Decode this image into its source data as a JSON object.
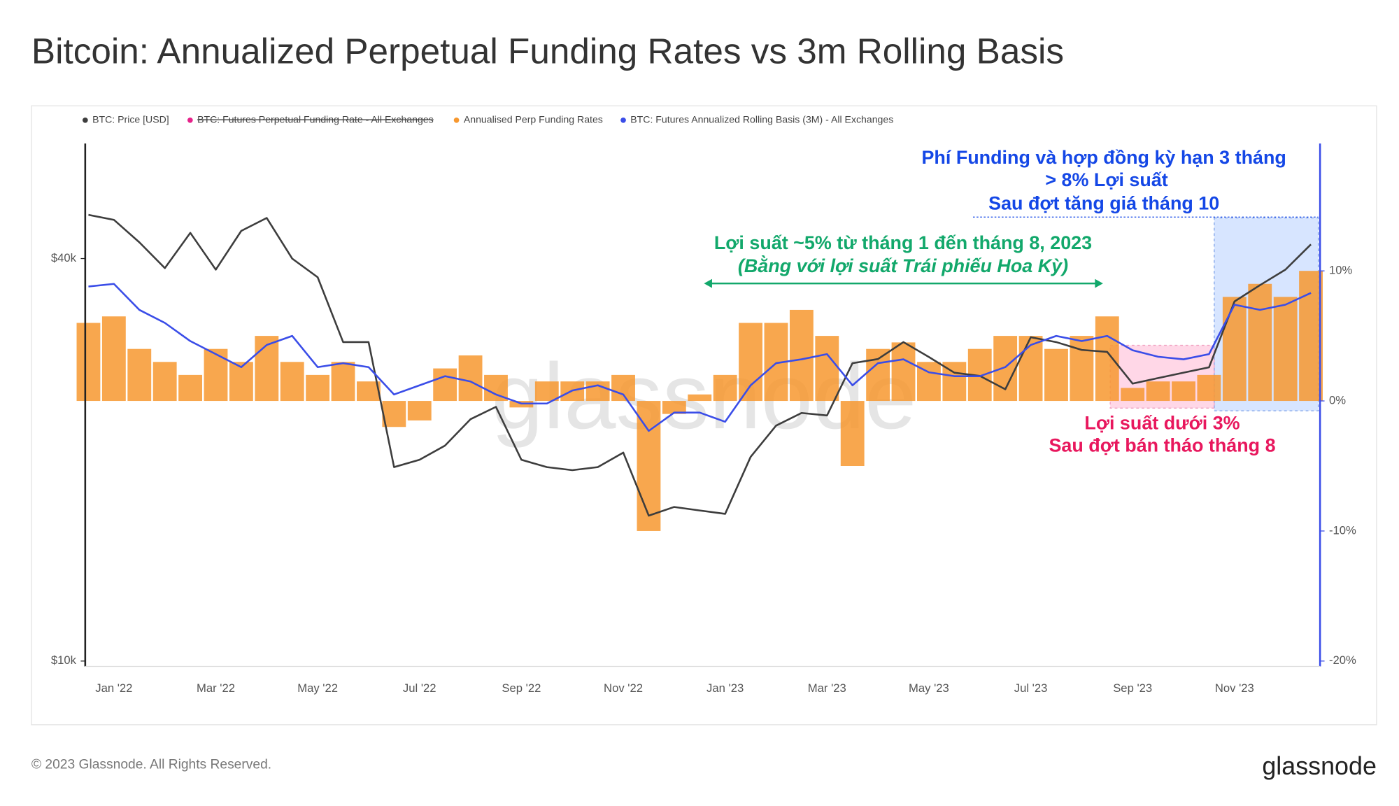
{
  "chart_data": {
    "type": "combo",
    "title": "Bitcoin: Annualized Perpetual Funding Rates vs 3m Rolling Basis",
    "categories": [
      null,
      "Jan '22",
      null,
      null,
      null,
      "Mar '22",
      null,
      null,
      null,
      "May '22",
      null,
      null,
      null,
      "Jul '22",
      null,
      null,
      null,
      "Sep '22",
      null,
      null,
      null,
      "Nov '22",
      null,
      null,
      null,
      "Jan '23",
      null,
      null,
      null,
      "Mar '23",
      null,
      null,
      null,
      "May '23",
      null,
      null,
      null,
      "Jul '23",
      null,
      null,
      null,
      "Sep '23",
      null,
      null,
      null,
      "Nov '23",
      null,
      null,
      null
    ],
    "series": [
      {
        "name": "BTC: Price [USD]",
        "type": "line",
        "axis": "y",
        "color": "#3d3d3d",
        "values": [
          46500,
          45700,
          42300,
          38700,
          43700,
          38500,
          44000,
          46000,
          40000,
          37500,
          30000,
          30000,
          19500,
          20000,
          21000,
          23000,
          24000,
          20000,
          19500,
          19300,
          19500,
          20500,
          16500,
          17000,
          16800,
          16600,
          20200,
          22500,
          23500,
          23300,
          27900,
          28300,
          30000,
          28500,
          27000,
          26700,
          25500,
          30500,
          30000,
          29200,
          29000,
          26000,
          26500,
          27000,
          27500,
          34500,
          36500,
          38500,
          42000
        ]
      },
      {
        "name": "Annualised Perp Funding Rates",
        "type": "bar",
        "axis": "y2",
        "color": "#f7982f",
        "values": [
          6,
          6.5,
          4,
          3,
          2,
          4,
          3,
          5,
          3,
          2,
          3,
          1.5,
          -2,
          -1.5,
          2.5,
          3.5,
          2,
          -0.5,
          1.5,
          1.5,
          1.5,
          2,
          -10,
          -1,
          0.5,
          2,
          6,
          6,
          7,
          5,
          -5,
          4,
          4.5,
          3,
          3,
          4,
          5,
          5,
          4,
          5,
          6.5,
          1,
          1.5,
          1.5,
          2,
          8,
          9,
          8,
          10
        ]
      },
      {
        "name": "BTC: Futures Annualized Rolling Basis (3M) - All Exchanges",
        "type": "line",
        "axis": "y2",
        "color": "#3a4de8",
        "values": [
          8.8,
          9,
          7,
          6,
          4.6,
          3.6,
          2.6,
          4.3,
          5,
          2.6,
          2.9,
          2.6,
          0.5,
          1.2,
          1.9,
          1.5,
          0.5,
          -0.2,
          -0.2,
          0.8,
          1.2,
          0.5,
          -2.3,
          -0.9,
          -0.9,
          -1.6,
          1.2,
          2.9,
          3.2,
          3.6,
          1.2,
          2.9,
          3.2,
          2.2,
          1.9,
          1.9,
          2.6,
          4.3,
          5,
          4.6,
          5,
          3.9,
          3.4,
          3.2,
          3.6,
          7.4,
          7,
          7.4,
          8.3
        ]
      }
    ],
    "hidden_series": {
      "name": "BTC: Futures Perpetual Funding Rate - All Exchanges",
      "color": "#e6228a"
    },
    "legend_order": [
      0,
      "hidden",
      1,
      2
    ],
    "ylog": true,
    "ylim": [
      10000,
      60000
    ],
    "yticks": [
      {
        "value": 10000,
        "label": "$10k"
      },
      {
        "value": 40000,
        "label": "$40k"
      }
    ],
    "y2lim": [
      -20,
      20
    ],
    "y2ticks": [
      {
        "value": 10,
        "label": "10%"
      },
      {
        "value": 0,
        "label": "0%"
      },
      {
        "value": -10,
        "label": "-10%"
      },
      {
        "value": -20,
        "label": "-20%"
      }
    ],
    "y2_axis_color": "#3a4de8",
    "annotations": [
      {
        "lines": [
          "Phí Funding và hợp đồng kỳ hạn 3 tháng",
          "> 8% Lợi suất",
          "Sau đợt tăng giá tháng 10"
        ],
        "color": "#1447e6"
      },
      {
        "lines": [
          "Lợi suất ~5% từ tháng 1 đến tháng 8, 2023",
          "(Bằng với lợi suất Trái phiếu Hoa Kỳ)"
        ],
        "color": "#12a86b"
      },
      {
        "lines": [
          "Lợi suất dưới 3%",
          "Sau đợt bán tháo tháng 8"
        ],
        "color": "#e8175d"
      }
    ],
    "watermark": "glassnode",
    "footer": "© 2023 Glassnode. All Rights Reserved.",
    "logo": "glassnode"
  }
}
